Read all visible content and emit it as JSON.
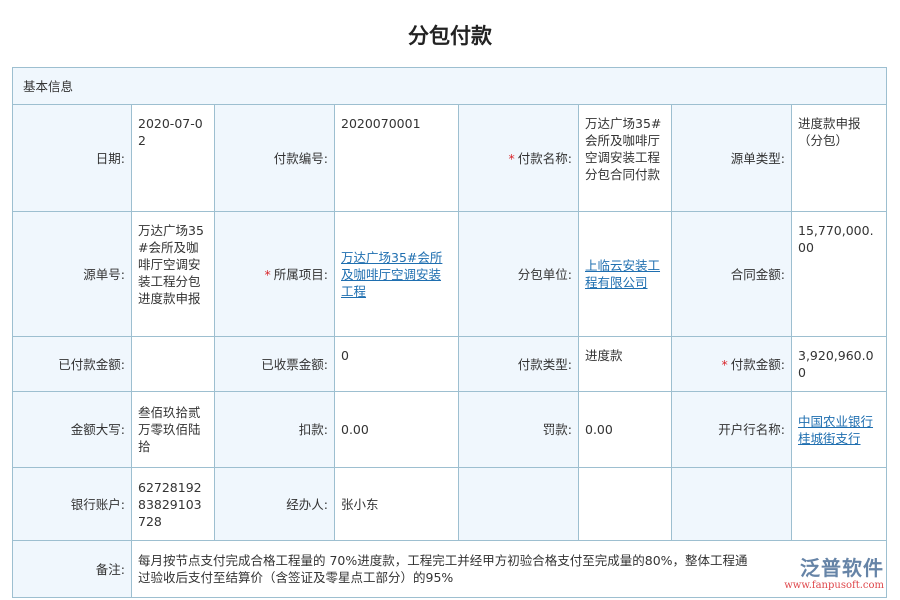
{
  "title": "分包付款",
  "section": "基本信息",
  "rows": [
    [
      {
        "label": "日期:",
        "value": "2020-07-02"
      },
      {
        "label": "付款编号:",
        "value": "2020070001"
      },
      {
        "label": "付款名称:",
        "required": true,
        "value": "万达广场35#会所及咖啡厅空调安装工程分包合同付款"
      },
      {
        "label": "源单类型:",
        "value": "进度款申报（分包）"
      }
    ],
    [
      {
        "label": "源单号:",
        "value": "万达广场35#会所及咖啡厅空调安装工程分包进度款申报"
      },
      {
        "label": "所属项目:",
        "required": true,
        "value": "万达广场35#会所及咖啡厅空调安装工程",
        "link": true
      },
      {
        "label": "分包单位:",
        "value": "上临云安装工程有限公司",
        "link": true
      },
      {
        "label": "合同金额:",
        "value": "15,770,000.00"
      }
    ],
    [
      {
        "label": "已付款金额:",
        "value": ""
      },
      {
        "label": "已收票金额:",
        "value": "0"
      },
      {
        "label": "付款类型:",
        "value": "进度款"
      },
      {
        "label": "付款金额:",
        "required": true,
        "value": "3,920,960.00"
      }
    ],
    [
      {
        "label": "金额大写:",
        "value": "叁佰玖拾贰万零玖佰陆拾"
      },
      {
        "label": "扣款:",
        "value": "0.00"
      },
      {
        "label": "罚款:",
        "value": "0.00"
      },
      {
        "label": "开户行名称:",
        "value": "中国农业银行桂城街支行",
        "link": true
      }
    ],
    [
      {
        "label": "银行账户:",
        "value": "6272819283829103728"
      },
      {
        "label": "经办人:",
        "value": "张小东"
      },
      {
        "label": "",
        "value": ""
      },
      {
        "label": "",
        "value": ""
      }
    ]
  ],
  "remark": {
    "label": "备注:",
    "value": "每月按节点支付完成合格工程量的 70%进度款，工程完工并经甲方初验合格支付至完成量的80%，整体工程通过验收后支付至结算价（含签证及零星点工部分）的95%"
  },
  "watermark": {
    "brand": "泛普软件",
    "url": "www.fanpusoft.com"
  },
  "colors": {
    "border": "#9dbfd0",
    "label_bg": "#f0f7fd",
    "link": "#1f6fb0",
    "required": "#d9262b"
  }
}
